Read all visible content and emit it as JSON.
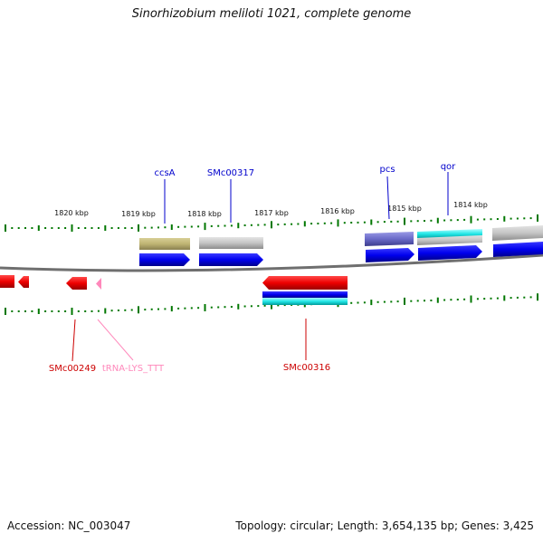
{
  "title": "Sinorhizobium meliloti 1021, complete genome",
  "footer": {
    "accession": "Accession: NC_003047",
    "topology": "Topology: circular; Length: 3,654,135 bp; Genes: 3,425"
  },
  "kbp_labels": [
    "1820 kbp",
    "1819 kbp",
    "1818 kbp",
    "1817 kbp",
    "1816 kbp",
    "1815 kbp",
    "1814 kbp"
  ],
  "top_gene_labels": [
    "ccsA",
    "SMc00317",
    "pcs",
    "qor"
  ],
  "bottom_gene_labels": [
    "SMc00249",
    "tRNA-LYS_TTT",
    "SMc00316"
  ],
  "colors": {
    "forward_cds": "#0000ee",
    "reverse_cds": "#ee0000",
    "top_label": "#0000cc",
    "bottom_label": "#cc0000",
    "trna": "#ff88bb",
    "tick": "#007700",
    "backbone": "#888888"
  }
}
